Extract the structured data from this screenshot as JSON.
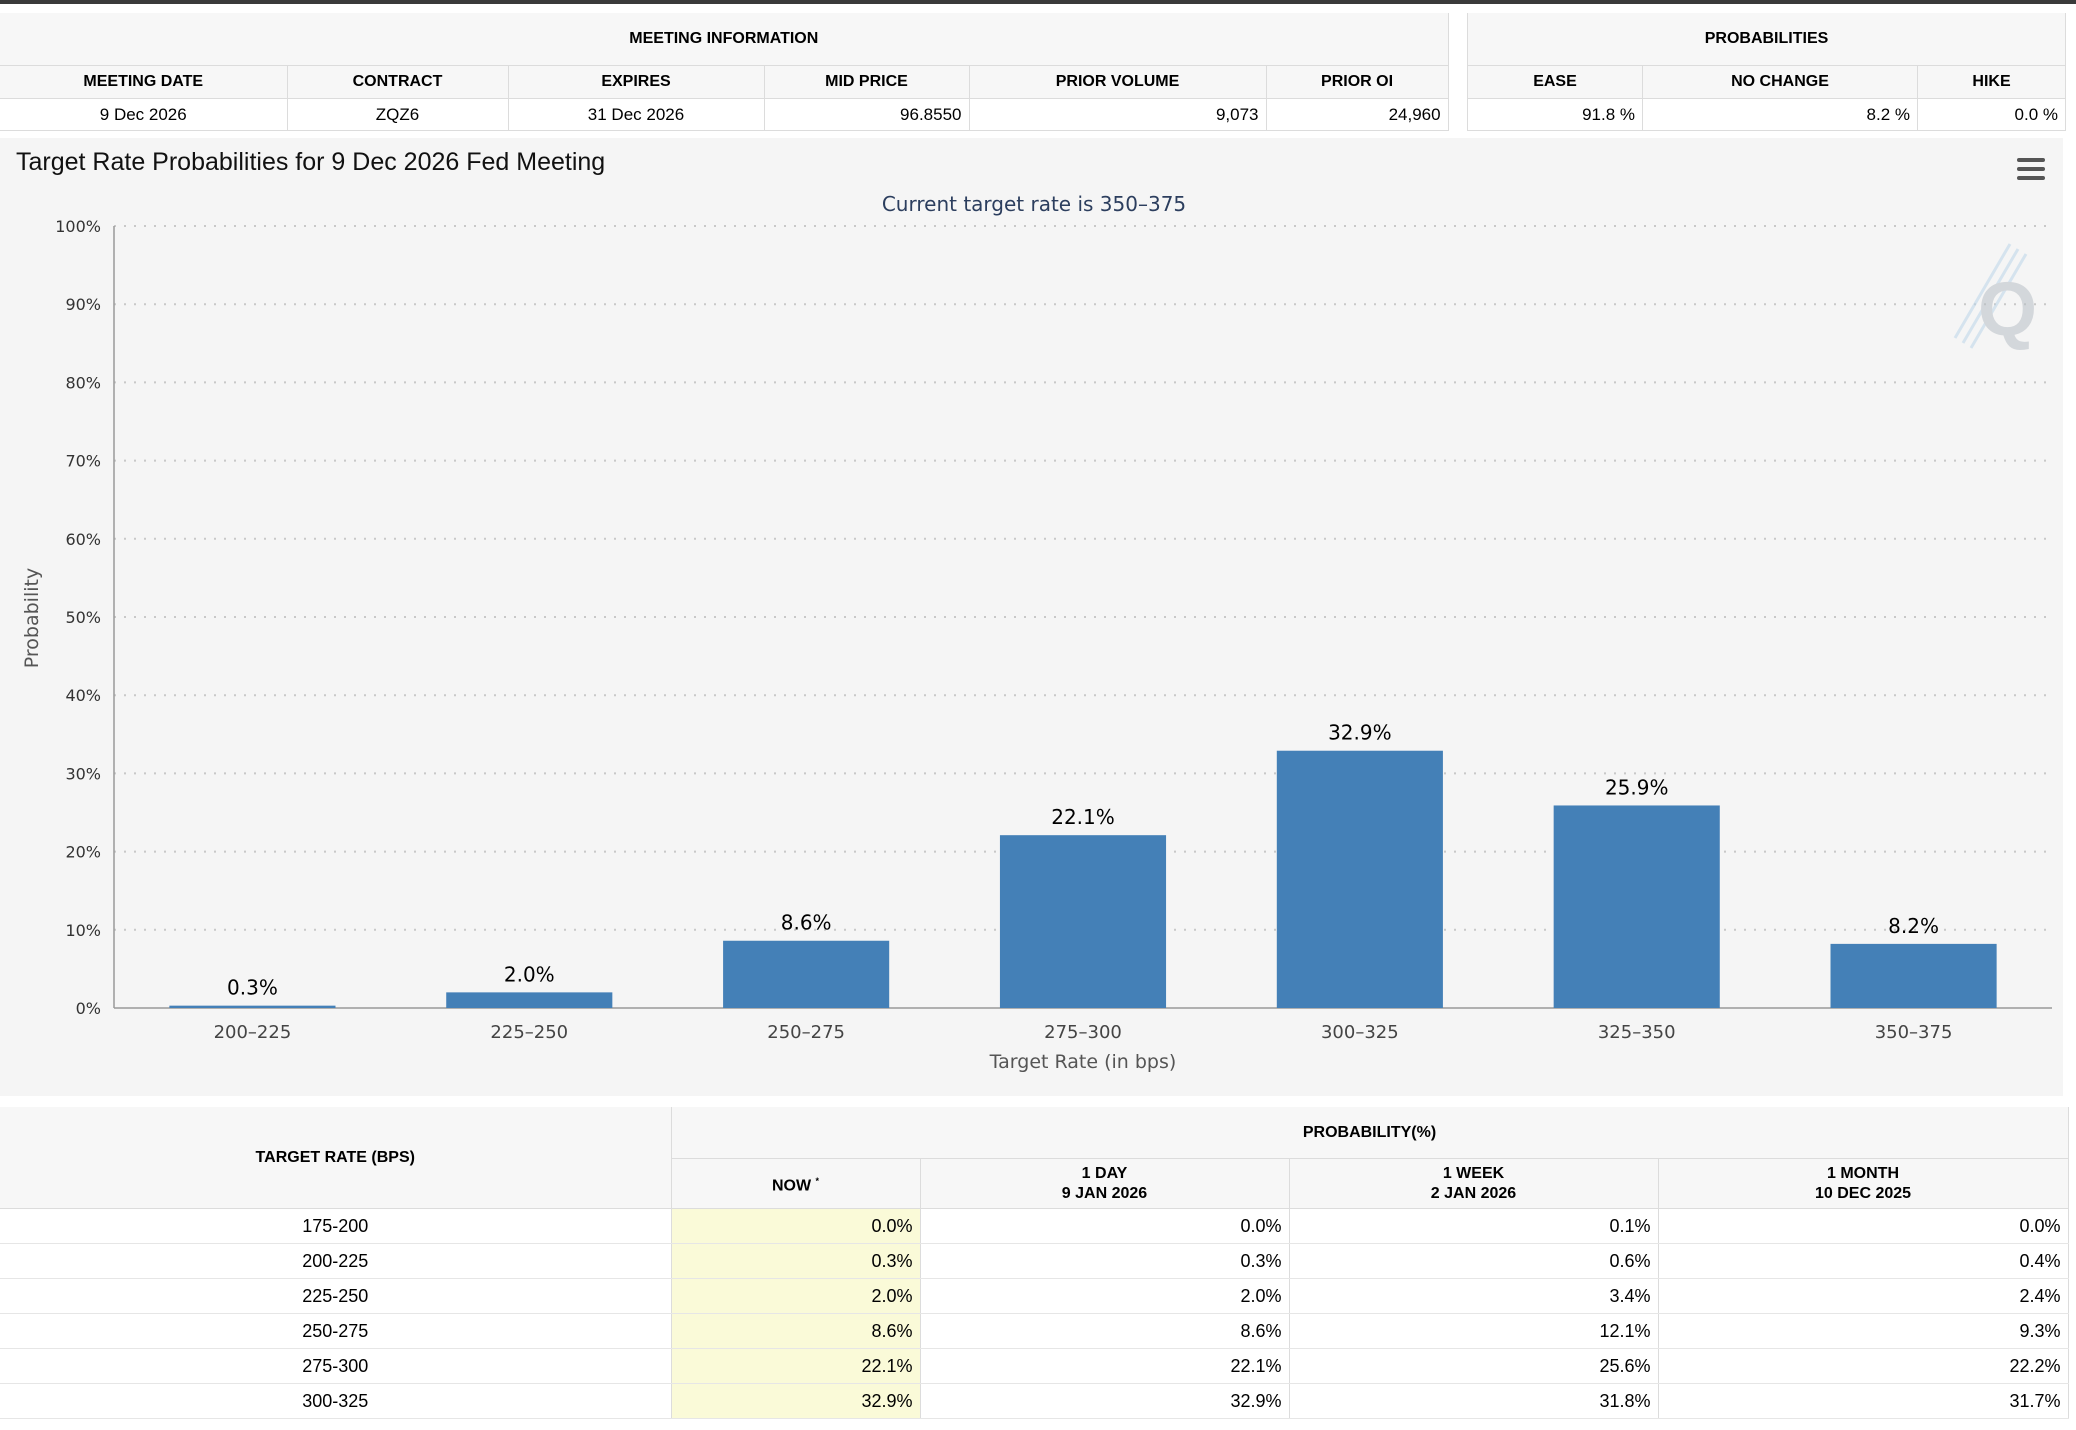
{
  "meeting_info": {
    "header": "MEETING INFORMATION",
    "columns": [
      "MEETING DATE",
      "CONTRACT",
      "EXPIRES",
      "MID PRICE",
      "PRIOR VOLUME",
      "PRIOR OI"
    ],
    "row": [
      "9 Dec 2026",
      "ZQZ6",
      "31 Dec 2026",
      "96.8550",
      "9,073",
      "24,960"
    ]
  },
  "probabilities": {
    "header": "PROBABILITIES",
    "columns": [
      "EASE",
      "NO CHANGE",
      "HIKE"
    ],
    "row": [
      "91.8 %",
      "8.2 %",
      "0.0 %"
    ]
  },
  "chart": {
    "title": "Target Rate Probabilities for 9 Dec 2026 Fed Meeting",
    "menu_icon": "hamburger-menu-icon",
    "watermark_icon": "q-logo-icon"
  },
  "chart_data": {
    "type": "bar",
    "title": "Target Rate Probabilities for 9 Dec 2026 Fed Meeting",
    "subtitle": "Current target rate is 350–375",
    "xlabel": "Target Rate (in bps)",
    "ylabel": "Probability",
    "categories": [
      "200–225",
      "225–250",
      "250–275",
      "275–300",
      "300–325",
      "325–350",
      "350–375"
    ],
    "values": [
      0.3,
      2.0,
      8.6,
      22.1,
      32.9,
      25.9,
      8.2
    ],
    "value_labels": [
      "0.3%",
      "2.0%",
      "8.6%",
      "22.1%",
      "32.9%",
      "25.9%",
      "8.2%"
    ],
    "ylim": [
      0,
      100
    ],
    "yticks": [
      "0%",
      "10%",
      "20%",
      "30%",
      "40%",
      "50%",
      "60%",
      "70%",
      "80%",
      "90%",
      "100%"
    ],
    "grid": true,
    "bar_color": "#4480b7"
  },
  "rates_table": {
    "rate_header": "TARGET RATE (BPS)",
    "group_header": "PROBABILITY(%)",
    "sub_headers": [
      {
        "line1": "NOW",
        "line2": "",
        "mark": "*"
      },
      {
        "line1": "1 DAY",
        "line2": "9 JAN 2026",
        "mark": ""
      },
      {
        "line1": "1 WEEK",
        "line2": "2 JAN 2026",
        "mark": ""
      },
      {
        "line1": "1 MONTH",
        "line2": "10 DEC 2025",
        "mark": ""
      }
    ],
    "rows": [
      [
        "175-200",
        "0.0%",
        "0.0%",
        "0.1%",
        "0.0%"
      ],
      [
        "200-225",
        "0.3%",
        "0.3%",
        "0.6%",
        "0.4%"
      ],
      [
        "225-250",
        "2.0%",
        "2.0%",
        "3.4%",
        "2.4%"
      ],
      [
        "250-275",
        "8.6%",
        "8.6%",
        "12.1%",
        "9.3%"
      ],
      [
        "275-300",
        "22.1%",
        "22.1%",
        "25.6%",
        "22.2%"
      ],
      [
        "300-325",
        "32.9%",
        "32.9%",
        "31.8%",
        "31.7%"
      ]
    ]
  }
}
